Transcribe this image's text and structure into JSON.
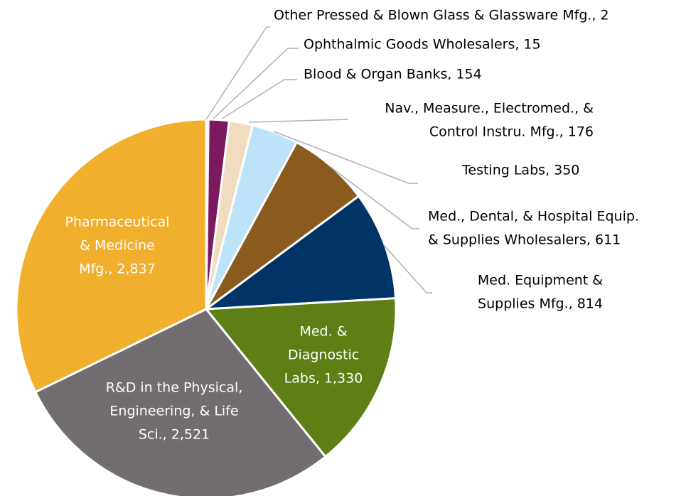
{
  "chart_data": {
    "type": "pie",
    "values": [
      2,
      15,
      154,
      176,
      350,
      611,
      814,
      1330,
      2521,
      2837
    ],
    "labels": [
      [
        "Other Pressed & Blown Glass & Glassware Mfg., 2"
      ],
      [
        "Ophthalmic Goods Wholesalers, 15"
      ],
      [
        "Blood & Organ Banks, 154"
      ],
      [
        "Nav., Measure., Electromed., &",
        "Control Instru. Mfg., 176"
      ],
      [
        "Testing Labs, 350"
      ],
      [
        "Med., Dental, & Hospital Equip.",
        "& Supplies Wholesalers, 611"
      ],
      [
        "Med. Equipment &",
        "Supplies Mfg., 814"
      ],
      [
        "Med. &",
        "Diagnostic",
        "Labs, 1,330"
      ],
      [
        "R&D in the Physical,",
        "Engineering, & Life",
        "Sci., 2,521"
      ],
      [
        "Pharmaceutical",
        "& Medicine",
        "Mfg., 2,837"
      ]
    ],
    "colors": [
      "#8c8c8c",
      "#3b3b6b",
      "#7b1a5e",
      "#f2dcc0",
      "#bde3f8",
      "#8b5a1e",
      "#003366",
      "#5f7f16",
      "#726d70",
      "#f0b02e"
    ]
  }
}
